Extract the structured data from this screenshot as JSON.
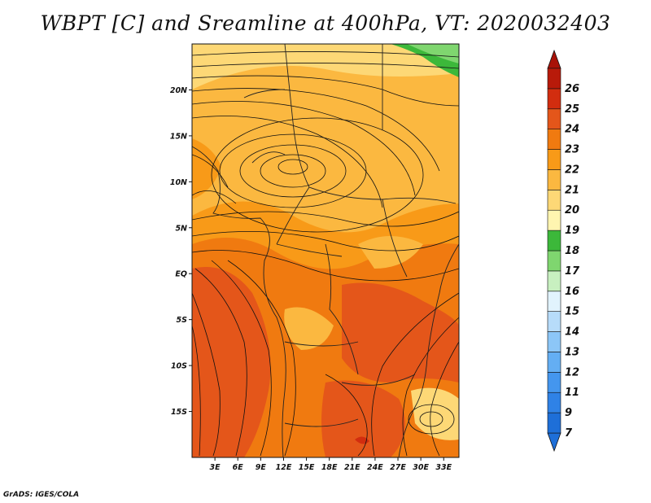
{
  "title": "WBPT [C] and Sreamline at 400hPa, VT: 2020032403",
  "credit": "GrADS: IGES/COLA",
  "map": {
    "lon_range": [
      0,
      35
    ],
    "lat_range": [
      -20,
      25
    ],
    "lon_ticks": [
      {
        "value": 3,
        "label": "3E"
      },
      {
        "value": 6,
        "label": "6E"
      },
      {
        "value": 9,
        "label": "9E"
      },
      {
        "value": 12,
        "label": "12E"
      },
      {
        "value": 15,
        "label": "15E"
      },
      {
        "value": 18,
        "label": "18E"
      },
      {
        "value": 21,
        "label": "21E"
      },
      {
        "value": 24,
        "label": "24E"
      },
      {
        "value": 27,
        "label": "27E"
      },
      {
        "value": 30,
        "label": "30E"
      },
      {
        "value": 33,
        "label": "33E"
      }
    ],
    "lat_ticks": [
      {
        "value": 20,
        "label": "20N"
      },
      {
        "value": 15,
        "label": "15N"
      },
      {
        "value": 10,
        "label": "10N"
      },
      {
        "value": 5,
        "label": "5N"
      },
      {
        "value": 0,
        "label": "EQ"
      },
      {
        "value": -5,
        "label": "5S"
      },
      {
        "value": -10,
        "label": "10S"
      },
      {
        "value": -15,
        "label": "15S"
      }
    ]
  },
  "colorbar": {
    "levels": [
      {
        "label": "7",
        "color": "#1e6fd8"
      },
      {
        "label": "9",
        "color": "#2f82e6"
      },
      {
        "label": "11",
        "color": "#4496ee"
      },
      {
        "label": "12",
        "color": "#64aef3"
      },
      {
        "label": "13",
        "color": "#8cc6f7"
      },
      {
        "label": "14",
        "color": "#b7dcfa"
      },
      {
        "label": "15",
        "color": "#e1f3fd"
      },
      {
        "label": "16",
        "color": "#c8f0c0"
      },
      {
        "label": "17",
        "color": "#7fd66f"
      },
      {
        "label": "18",
        "color": "#3cb83a"
      },
      {
        "label": "19",
        "color": "#fff5b0"
      },
      {
        "label": "20",
        "color": "#fdd876"
      },
      {
        "label": "21",
        "color": "#fbb840"
      },
      {
        "label": "22",
        "color": "#f89a18"
      },
      {
        "label": "23",
        "color": "#f07a10"
      },
      {
        "label": "24",
        "color": "#e4561a"
      },
      {
        "label": "25",
        "color": "#d22d0f"
      },
      {
        "label": "26",
        "color": "#b81a0a"
      }
    ],
    "under_color": "#1e6fd8",
    "over_color": "#a81208"
  },
  "field_colors": {
    "c20": "#fdd876",
    "c21": "#fbb840",
    "c22": "#f89a18",
    "c23": "#f07a10",
    "c24": "#e4561a",
    "c18": "#3cb83a"
  }
}
